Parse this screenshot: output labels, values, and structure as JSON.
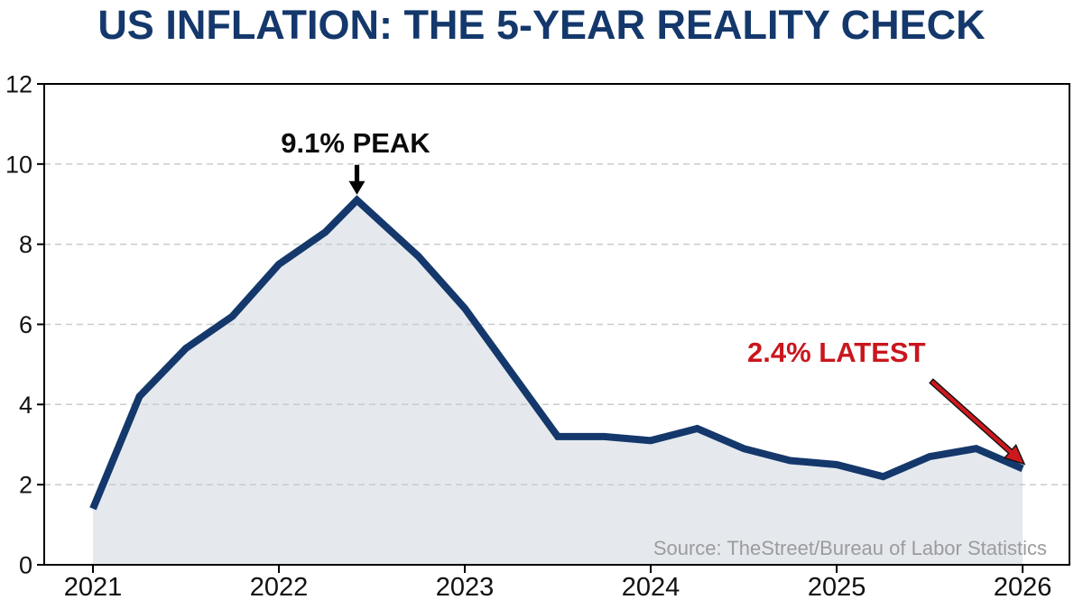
{
  "chart_data": {
    "type": "area",
    "title": "US INFLATION: THE 5-YEAR REALITY CHECK",
    "source": "Source: TheStreet/Bureau of Labor Statistics",
    "xlabel": "",
    "ylabel": "",
    "x": [
      2021.0,
      2021.25,
      2021.5,
      2021.75,
      2022.0,
      2022.25,
      2022.42,
      2022.75,
      2023.0,
      2023.25,
      2023.5,
      2023.75,
      2024.0,
      2024.25,
      2024.5,
      2024.75,
      2025.0,
      2025.25,
      2025.5,
      2025.75,
      2026.0
    ],
    "values": [
      1.4,
      4.2,
      5.4,
      6.2,
      7.5,
      8.3,
      9.1,
      7.7,
      6.4,
      4.8,
      3.2,
      3.2,
      3.1,
      3.4,
      2.9,
      2.6,
      2.5,
      2.2,
      2.7,
      2.9,
      2.4
    ],
    "xticks": [
      2021,
      2022,
      2023,
      2024,
      2025,
      2026
    ],
    "yticks": [
      0,
      2,
      4,
      6,
      8,
      10,
      12
    ],
    "xlim": [
      2020.738,
      2026.252
    ],
    "ylim": [
      0,
      12
    ],
    "grid": "horizontal-dashed",
    "legend": "none",
    "colors": {
      "line": "#14386B",
      "fill": "#E5E9EE",
      "title": "#14386B",
      "grid": "#C8CBCF",
      "axis": "#000000",
      "tick_label": "#111111",
      "source_text": "#9B9B9B",
      "annotation_peak_text": "#0B0B0B",
      "annotation_peak_arrow": "#000000",
      "annotation_latest_text": "#C9161C",
      "annotation_latest_arrow": "#CE181E",
      "background": "#FFFFFF"
    },
    "annotations": {
      "peak": {
        "label": "9.1% PEAK",
        "x": 2022.42,
        "value": 9.1,
        "arrow": "down"
      },
      "latest": {
        "label": "2.4% LATEST",
        "x": 2026.0,
        "value": 2.4,
        "arrow": "down-right"
      }
    }
  }
}
